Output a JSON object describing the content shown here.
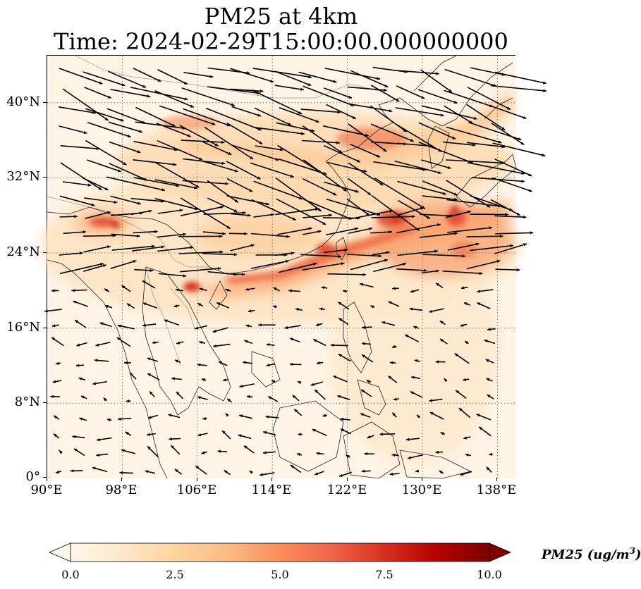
{
  "figure": {
    "title_line1": "PM25 at 4km",
    "title_line2": "Time: 2024-02-29T15:00:00.000000000"
  },
  "map": {
    "projection": "PlateCarree",
    "lon_range": [
      90,
      140
    ],
    "lat_range": [
      0,
      45
    ],
    "gridlines": "dotted",
    "field": "PM25",
    "overlay": "wind vectors (quiver)",
    "x_ticks": [
      "90°E",
      "98°E",
      "106°E",
      "114°E",
      "122°E",
      "130°E",
      "138°E"
    ],
    "y_ticks": [
      "0°",
      "8°N",
      "16°N",
      "24°N",
      "32°N",
      "40°N"
    ]
  },
  "colorbar": {
    "label": "PM25 (ug/m3)",
    "label_base": "PM25 (ug/m",
    "label_sup": "3",
    "label_end": ")",
    "ticks": [
      "0.0",
      "2.5",
      "5.0",
      "7.5",
      "10.0"
    ],
    "range": [
      0,
      10
    ],
    "extend": "both",
    "colormap": "OrRd",
    "colors": [
      "#fff7ec",
      "#fee8c8",
      "#fdd49e",
      "#fdbb84",
      "#fc8d59",
      "#ef6548",
      "#d7301f",
      "#b30000",
      "#7f0000"
    ]
  }
}
